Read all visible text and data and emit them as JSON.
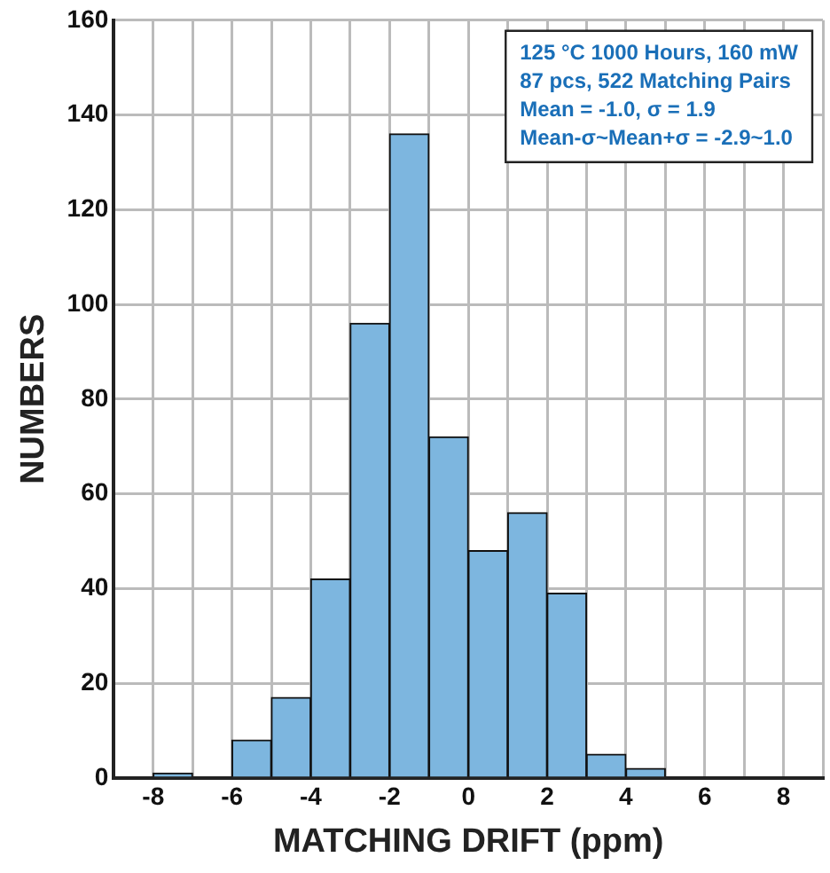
{
  "chart_data": {
    "type": "histogram",
    "xlabel": "MATCHING DRIFT (ppm)",
    "ylabel": "NUMBERS",
    "bins": [
      -8,
      -7,
      -6,
      -5,
      -4,
      -3,
      -2,
      -1,
      0,
      1,
      2,
      3,
      4,
      5
    ],
    "values": [
      1,
      0,
      8,
      17,
      42,
      96,
      136,
      72,
      48,
      56,
      39,
      5,
      2
    ],
    "color": "#7db6df",
    "xlim": [
      -9,
      9
    ],
    "xticks": [
      {
        "value": -9,
        "label": null
      },
      -8,
      {
        "value": -7,
        "label": null
      },
      -6,
      {
        "value": -5,
        "label": null
      },
      -4,
      {
        "value": -3,
        "label": null
      },
      -2,
      {
        "value": -1,
        "label": null
      },
      0,
      {
        "value": 1,
        "label": null
      },
      2,
      {
        "value": 3,
        "label": null
      },
      4,
      {
        "value": 5,
        "label": null
      },
      6,
      {
        "value": 7,
        "label": null
      },
      8,
      {
        "value": 9,
        "label": null
      }
    ],
    "ylim": [
      0,
      160
    ],
    "yticks": [
      0,
      20,
      40,
      60,
      80,
      100,
      120,
      140,
      160
    ],
    "grid": true,
    "annotations": [
      "125 °C 1000 Hours, 160 mW",
      "87 pcs, 522 Matching Pairs",
      "Mean = -1.0, σ = 1.9",
      "Mean-σ~Mean+σ = -2.9~1.0"
    ]
  }
}
